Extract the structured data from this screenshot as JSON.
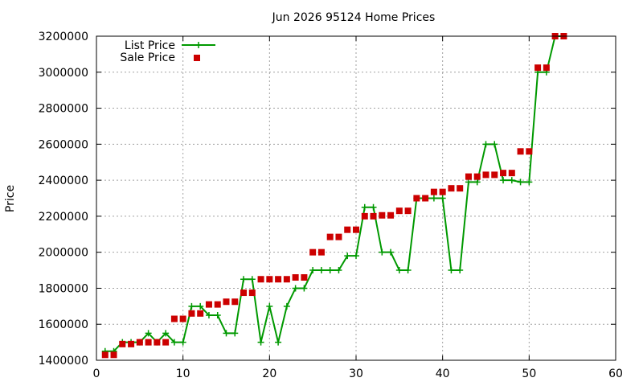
{
  "chart_data": {
    "type": "line",
    "title": "Jun 2026 95124 Home Prices",
    "xlabel": "",
    "ylabel": "Price",
    "xlim": [
      0,
      60
    ],
    "ylim": [
      1400000,
      3200000
    ],
    "x_ticks": [
      0,
      10,
      20,
      30,
      40,
      50,
      60
    ],
    "y_ticks": [
      1400000,
      1600000,
      1800000,
      2000000,
      2200000,
      2400000,
      2600000,
      2800000,
      3000000,
      3200000
    ],
    "x_tick_labels": [
      "0",
      "10",
      "20",
      "30",
      "40",
      "50",
      "60"
    ],
    "y_tick_labels": [
      "1400000",
      "1600000",
      "1800000",
      "2000000",
      "2200000",
      "2400000",
      "2600000",
      "2800000",
      "3000000",
      "3200000"
    ],
    "grid": true,
    "legend_position": "top-left",
    "series": [
      {
        "name": "List Price",
        "style": "line+cross",
        "color": "#009900",
        "x": [
          1,
          2,
          3,
          4,
          5,
          6,
          7,
          8,
          9,
          10,
          11,
          12,
          13,
          14,
          15,
          16,
          17,
          18,
          19,
          20,
          21,
          22,
          23,
          24,
          25,
          26,
          27,
          28,
          29,
          30,
          31,
          32,
          33,
          34,
          35,
          36,
          37,
          38,
          39,
          40,
          41,
          42,
          43,
          44,
          45,
          46,
          47,
          48,
          49,
          50,
          51,
          52,
          53,
          54
        ],
        "y": [
          1450000,
          1450000,
          1500000,
          1500000,
          1500000,
          1550000,
          1500000,
          1550000,
          1500000,
          1500000,
          1700000,
          1700000,
          1650000,
          1650000,
          1550000,
          1550000,
          1850000,
          1850000,
          1500000,
          1700000,
          1500000,
          1700000,
          1800000,
          1800000,
          1900000,
          1900000,
          1900000,
          1900000,
          1980000,
          1980000,
          2250000,
          2250000,
          2000000,
          2000000,
          1900000,
          1900000,
          2300000,
          2300000,
          2300000,
          2300000,
          1900000,
          1900000,
          2390000,
          2390000,
          2600000,
          2600000,
          2400000,
          2400000,
          2390000,
          2390000,
          3000000,
          3000000,
          3200000,
          3200000
        ]
      },
      {
        "name": "Sale Price",
        "style": "square-points",
        "color": "#cc0000",
        "x": [
          1,
          2,
          3,
          4,
          5,
          6,
          7,
          8,
          9,
          10,
          11,
          12,
          13,
          14,
          15,
          16,
          17,
          18,
          19,
          20,
          21,
          22,
          23,
          24,
          25,
          26,
          27,
          28,
          29,
          30,
          31,
          32,
          33,
          34,
          35,
          36,
          37,
          38,
          39,
          40,
          41,
          42,
          43,
          44,
          45,
          46,
          47,
          48,
          49,
          50,
          51,
          52,
          53,
          54
        ],
        "y": [
          1430000,
          1430000,
          1490000,
          1490000,
          1500000,
          1500000,
          1500000,
          1500000,
          1630000,
          1630000,
          1660000,
          1660000,
          1710000,
          1710000,
          1725000,
          1725000,
          1775000,
          1775000,
          1850000,
          1850000,
          1850000,
          1850000,
          1860000,
          1860000,
          2000000,
          2000000,
          2085000,
          2085000,
          2125000,
          2125000,
          2200000,
          2200000,
          2205000,
          2205000,
          2230000,
          2230000,
          2300000,
          2300000,
          2335000,
          2335000,
          2355000,
          2355000,
          2420000,
          2420000,
          2430000,
          2430000,
          2440000,
          2440000,
          2560000,
          2560000,
          3025000,
          3025000,
          3200000,
          3200000
        ]
      }
    ]
  }
}
